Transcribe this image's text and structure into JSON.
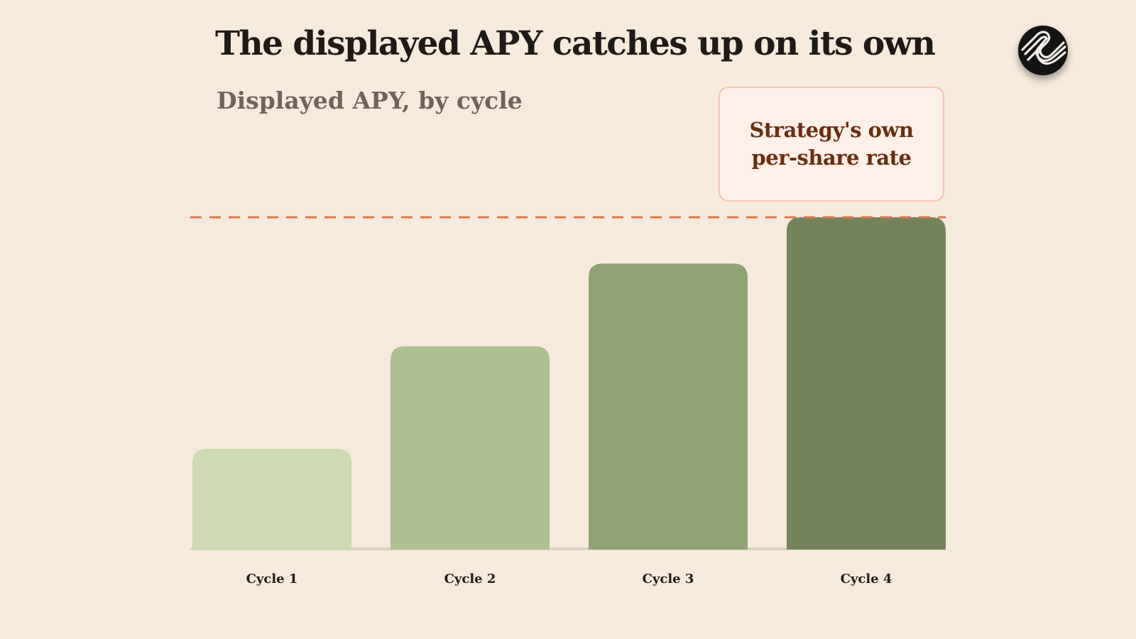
{
  "title": "The displayed APY catches up on its own",
  "subtitle": "Displayed APY, by cycle",
  "logo": {
    "icon": "stylized-s-logo-icon"
  },
  "callout": {
    "text": "Strategy's own\nper-share rate"
  },
  "colors": {
    "background": "#f5eadb",
    "reference_line": "#d77a4f",
    "baseline": "#ddd3c3",
    "bars": [
      "#cddab3",
      "#aebf90",
      "#91a273",
      "#74835a"
    ]
  },
  "chart_data": {
    "type": "bar",
    "title": "Displayed APY, by cycle",
    "categories": [
      "Cycle 1",
      "Cycle 2",
      "Cycle 3",
      "Cycle 4"
    ],
    "values": [
      30,
      61,
      86,
      100
    ],
    "ylim": [
      0,
      100
    ],
    "reference_line": {
      "value": 100,
      "style": "dashed",
      "label": "Strategy's own per-share rate"
    },
    "xlabel": "",
    "ylabel": "",
    "grid": false,
    "legend": "none"
  }
}
